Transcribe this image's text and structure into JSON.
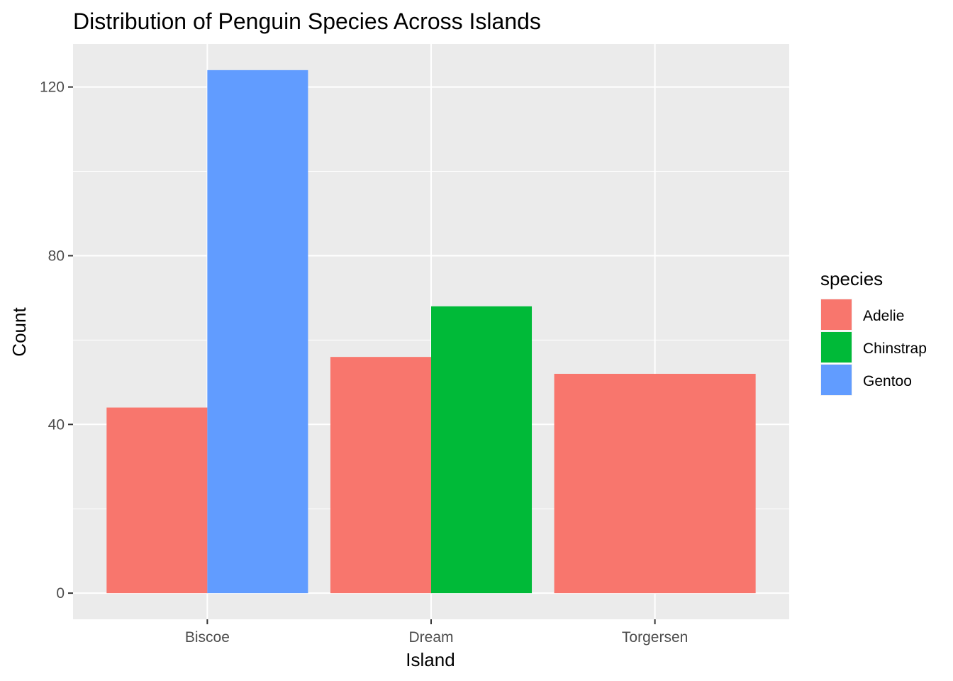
{
  "chart_data": {
    "type": "bar",
    "title": "Distribution of Penguin Species Across Islands",
    "xlabel": "Island",
    "ylabel": "Count",
    "categories": [
      "Biscoe",
      "Dream",
      "Torgersen"
    ],
    "y_ticks": [
      0,
      40,
      80,
      120
    ],
    "ylim": [
      -6.2,
      130.2
    ],
    "grid": true,
    "legend": {
      "title": "species",
      "position": "right",
      "entries": [
        {
          "name": "Adelie",
          "color": "#F8766D"
        },
        {
          "name": "Chinstrap",
          "color": "#00BA38"
        },
        {
          "name": "Gentoo",
          "color": "#619CFF"
        }
      ]
    },
    "bars": [
      {
        "category": "Biscoe",
        "species": "Adelie",
        "value": 44,
        "color": "#F8766D"
      },
      {
        "category": "Biscoe",
        "species": "Gentoo",
        "value": 124,
        "color": "#619CFF"
      },
      {
        "category": "Dream",
        "species": "Adelie",
        "value": 56,
        "color": "#F8766D"
      },
      {
        "category": "Dream",
        "species": "Chinstrap",
        "value": 68,
        "color": "#00BA38"
      },
      {
        "category": "Torgersen",
        "species": "Adelie",
        "value": 52,
        "color": "#F8766D"
      }
    ],
    "panel_background": "#EBEBEB",
    "grid_color": "#FFFFFF"
  }
}
